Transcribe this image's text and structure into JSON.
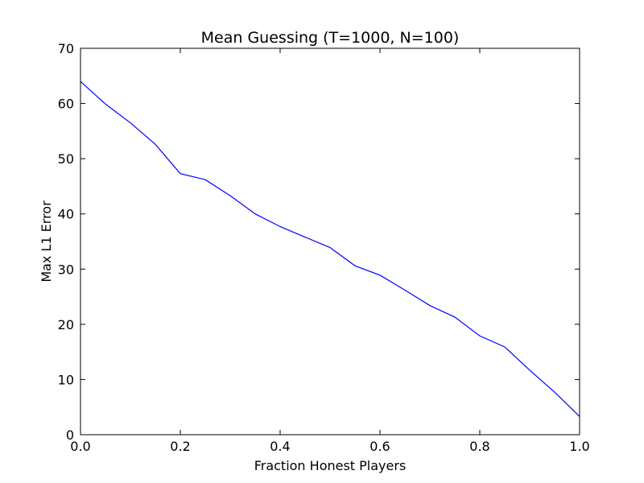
{
  "chart_data": {
    "type": "line",
    "title": "Mean Guessing (T=1000, N=100)",
    "xlabel": "Fraction Honest Players",
    "ylabel": "Max L1 Error",
    "xlim": [
      0.0,
      1.0
    ],
    "ylim": [
      0,
      70
    ],
    "x_ticks": [
      "0.0",
      "0.2",
      "0.4",
      "0.6",
      "0.8",
      "1.0"
    ],
    "y_ticks": [
      "0",
      "10",
      "20",
      "30",
      "40",
      "50",
      "60",
      "70"
    ],
    "grid": false,
    "legend": "none",
    "series": [
      {
        "color": "#0000ff",
        "x": [
          0.0,
          0.05,
          0.1,
          0.15,
          0.2,
          0.25,
          0.3,
          0.35,
          0.4,
          0.45,
          0.5,
          0.55,
          0.6,
          0.65,
          0.7,
          0.75,
          0.8,
          0.85,
          0.9,
          0.95,
          1.0
        ],
        "values": [
          64.0,
          59.9,
          56.5,
          52.6,
          47.3,
          46.2,
          43.3,
          40.0,
          37.7,
          35.8,
          33.9,
          30.6,
          28.9,
          26.2,
          23.4,
          21.3,
          17.9,
          15.9,
          11.7,
          7.7,
          3.3
        ]
      }
    ]
  }
}
